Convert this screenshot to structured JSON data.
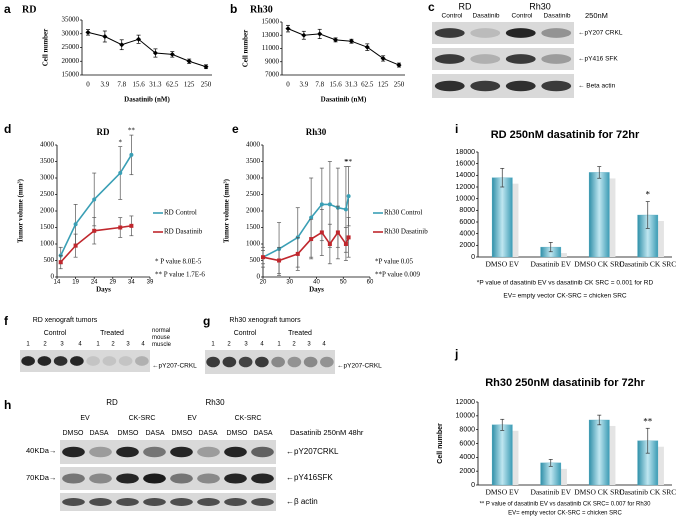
{
  "chart_data": [
    {
      "panel": "a",
      "type": "line",
      "title": "RD",
      "x_label": "Dasatinib (nM)",
      "y_label": "Cell number",
      "categories": [
        "0",
        "3.9",
        "7.8",
        "15.6",
        "31.3",
        "62.5",
        "125",
        "250"
      ],
      "values": [
        30500,
        29000,
        26000,
        28000,
        23000,
        22500,
        20000,
        18000
      ],
      "errors": [
        1000,
        2000,
        1800,
        1500,
        1500,
        1000,
        800,
        700
      ],
      "color": "#000000",
      "ylim": [
        15000,
        35000
      ],
      "yticks": [
        15000,
        20000,
        25000,
        30000,
        35000
      ]
    },
    {
      "panel": "b",
      "type": "line",
      "title": "Rh30",
      "x_label": "Dasatinib (nM)",
      "y_label": "Cell number",
      "categories": [
        "0",
        "3.9",
        "7.8",
        "15.6",
        "31.3",
        "62.5",
        "125",
        "250"
      ],
      "values": [
        14000,
        13000,
        13200,
        12300,
        12100,
        11200,
        9500,
        8500
      ],
      "errors": [
        500,
        600,
        700,
        300,
        300,
        500,
        400,
        300
      ],
      "color": "#000000",
      "ylim": [
        7000,
        15000
      ],
      "yticks": [
        7000,
        9000,
        11000,
        13000,
        15000
      ]
    },
    {
      "panel": "d",
      "type": "line",
      "title": "RD",
      "x_label": "Days",
      "y_label": "Tumor volume (mm³)",
      "x": [
        15,
        19,
        24,
        31,
        34
      ],
      "series": [
        {
          "name": "RD Control",
          "color": "#3a9fb5",
          "values": [
            650,
            1600,
            2350,
            3150,
            3700
          ],
          "errors": [
            250,
            600,
            800,
            800,
            600
          ]
        },
        {
          "name": "RD Dasatinib",
          "color": "#c0272d",
          "values": [
            450,
            950,
            1400,
            1500,
            1550
          ],
          "errors": [
            200,
            350,
            400,
            300,
            300
          ]
        }
      ],
      "xlim": [
        14,
        39
      ],
      "xticks": [
        14,
        19,
        24,
        29,
        34,
        39
      ],
      "ylim": [
        0,
        4000
      ],
      "yticks": [
        0,
        500,
        1000,
        1500,
        2000,
        2500,
        3000,
        3500,
        4000
      ],
      "annotations": [
        "*",
        "**"
      ],
      "notes": [
        "* P value 8.0E-5",
        "** P value 1.7E-6"
      ]
    },
    {
      "panel": "e",
      "type": "line",
      "title": "Rh30",
      "x_label": "Days",
      "y_label": "Tumor volume (mm³)",
      "x": [
        20,
        26,
        33,
        38,
        42,
        45,
        48,
        51,
        52
      ],
      "series": [
        {
          "name": "Rh30 Control",
          "color": "#3a9fb5",
          "values": [
            600,
            850,
            1200,
            1800,
            2200,
            2200,
            2100,
            2050,
            2450
          ],
          "errors": [
            300,
            800,
            900,
            1200,
            1100,
            1300,
            1200,
            1300,
            900
          ]
        },
        {
          "name": "Rh30 Dasatinib",
          "color": "#c0272d",
          "values": [
            600,
            500,
            700,
            1150,
            1350,
            1000,
            1350,
            1000,
            1200
          ],
          "errors": [
            200,
            400,
            500,
            600,
            700,
            600,
            800,
            500,
            600
          ]
        }
      ],
      "xlim": [
        20,
        60
      ],
      "xticks": [
        20,
        30,
        40,
        50,
        60
      ],
      "ylim": [
        0,
        4000
      ],
      "yticks": [
        0,
        500,
        1000,
        1500,
        2000,
        2500,
        3000,
        3500,
        4000
      ],
      "annotations": [
        "*",
        "**"
      ],
      "notes": [
        "*P value 0.05",
        "**P value 0.009"
      ]
    },
    {
      "panel": "i",
      "type": "bar",
      "title": "RD 250nM dasatinib for 72hr",
      "categories": [
        "DMSO EV",
        "Dasatinib EV",
        "DMSO CK SRC",
        "Dasatinib CK SRC"
      ],
      "values": [
        13600,
        1700,
        14500,
        7200
      ],
      "errors": [
        1600,
        800,
        1000,
        2300
      ],
      "color": "#4aa7c0",
      "ylim": [
        0,
        18000
      ],
      "yticks": [
        0,
        2000,
        4000,
        6000,
        8000,
        10000,
        12000,
        14000,
        16000,
        18000
      ],
      "annotations": [
        "*"
      ],
      "notes": [
        "*P value of dasatinib EV vs dasatinib CK SRC = 0.001 for RD",
        "EV= empty vector    CK-SRC = chicken SRC"
      ]
    },
    {
      "panel": "j",
      "type": "bar",
      "title": "Rh30 250nM dasatinib for 72hr",
      "y_label": "Cell number",
      "categories": [
        "DMSO EV",
        "Dasatinib EV",
        "DMSO CK SRC",
        "Dasatinib CK SRC"
      ],
      "values": [
        8700,
        3200,
        9400,
        6400
      ],
      "errors": [
        800,
        500,
        700,
        1800
      ],
      "color": "#4aa7c0",
      "ylim": [
        0,
        12000
      ],
      "yticks": [
        0,
        2000,
        4000,
        6000,
        8000,
        10000,
        12000
      ],
      "annotations": [
        "**"
      ],
      "notes": [
        "** P value of dasatinib EV vs dasatinib CK SRC= 0.007 for Rh30",
        "EV= empty vector        CK-SRC = chicken SRC"
      ]
    }
  ],
  "blots": {
    "c": {
      "panel": "c",
      "groups": [
        "RD",
        "Rh30"
      ],
      "lanes": [
        "Control",
        "Dasatinib",
        "Control",
        "Dasatinib"
      ],
      "treatment": "250nM",
      "bands": [
        "←pY207 CRKL",
        "←pY416 SFK",
        "← Beta actin"
      ]
    },
    "f": {
      "panel": "f",
      "title": "RD xenograft tumors",
      "groups": [
        "Control",
        "Treated"
      ],
      "lanes": [
        "1",
        "2",
        "3",
        "4",
        "1",
        "2",
        "3",
        "4"
      ],
      "extra_lane": "normal mouse muscle",
      "bands": [
        "←pY207-CRKL"
      ]
    },
    "g": {
      "panel": "g",
      "title": "Rh30 xenograft tumors",
      "groups": [
        "Control",
        "Treated"
      ],
      "lanes": [
        "1",
        "2",
        "3",
        "4",
        "1",
        "2",
        "3",
        "4"
      ],
      "bands": [
        "←pY207-CRKL"
      ]
    },
    "h": {
      "panel": "h",
      "groups": [
        "RD",
        "Rh30"
      ],
      "vectors": [
        "EV",
        "CK-SRC",
        "EV",
        "CK-SRC"
      ],
      "lanes": [
        "DMSO",
        "DASA",
        "DMSO",
        "DASA",
        "DMSO",
        "DASA",
        "DMSO",
        "DASA"
      ],
      "treatment": "Dasatinib 250nM 48hr",
      "sizes": [
        "40KDa→",
        "70KDa→"
      ],
      "bands": [
        "←pY207CRKL",
        "←pY416SFK",
        "←β actin"
      ]
    }
  }
}
